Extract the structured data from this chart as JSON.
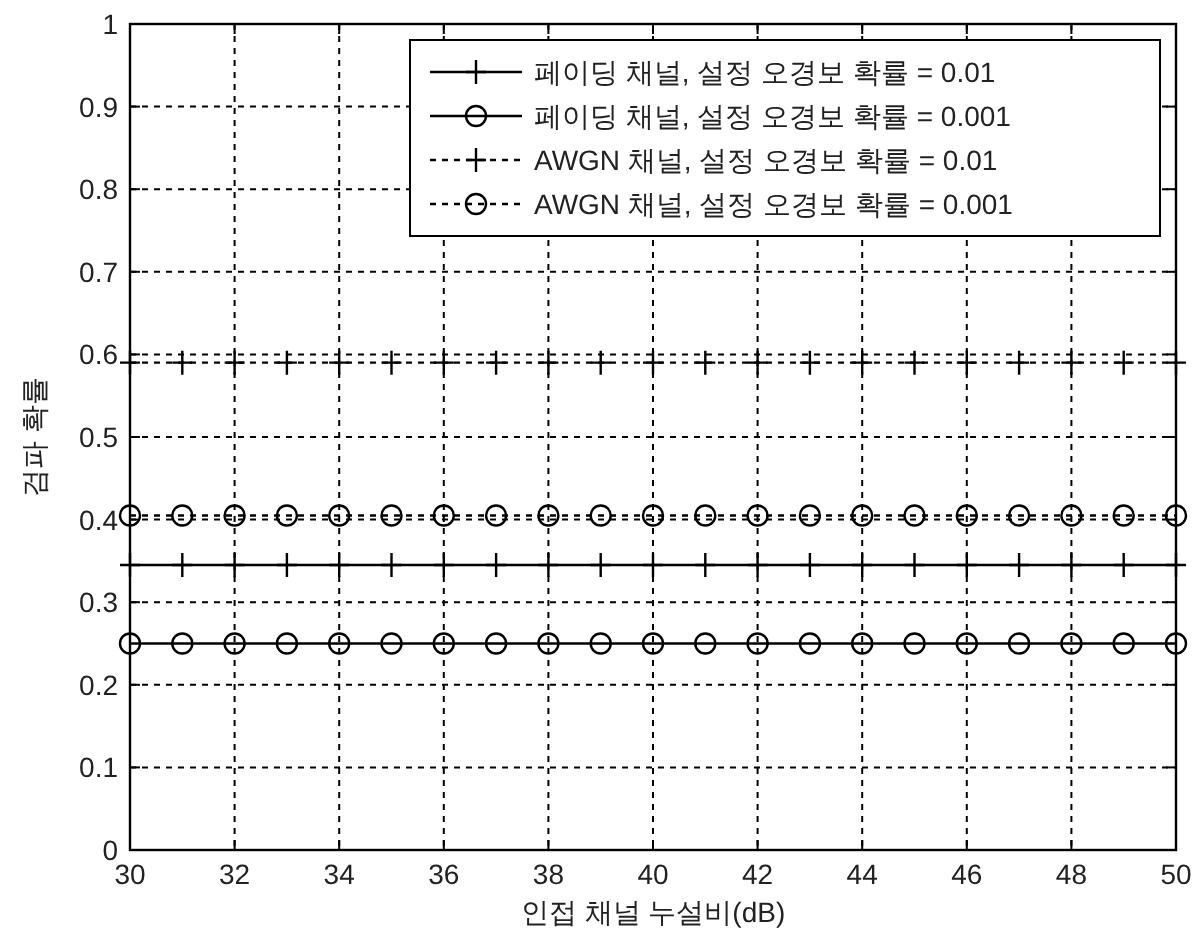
{
  "chart_data": {
    "type": "line",
    "xlabel": "인접 채널 누설비(dB)",
    "ylabel": "검파 확률",
    "x": [
      30,
      31,
      32,
      33,
      34,
      35,
      36,
      37,
      38,
      39,
      40,
      41,
      42,
      43,
      44,
      45,
      46,
      47,
      48,
      49,
      50
    ],
    "series": [
      {
        "name": "페이딩 채널, 설정 오경보 확률 = 0.01",
        "color": "#000000",
        "marker": "cross",
        "line_style": "solid",
        "values": [
          0.345,
          0.345,
          0.345,
          0.345,
          0.345,
          0.345,
          0.345,
          0.345,
          0.345,
          0.345,
          0.345,
          0.345,
          0.345,
          0.345,
          0.345,
          0.345,
          0.345,
          0.345,
          0.345,
          0.345,
          0.345
        ]
      },
      {
        "name": "페이딩 채널, 설정 오경보 확률 = 0.001",
        "color": "#000000",
        "marker": "circle",
        "line_style": "solid",
        "values": [
          0.25,
          0.25,
          0.25,
          0.25,
          0.25,
          0.25,
          0.25,
          0.25,
          0.25,
          0.25,
          0.25,
          0.25,
          0.25,
          0.25,
          0.25,
          0.25,
          0.25,
          0.25,
          0.25,
          0.25,
          0.25
        ]
      },
      {
        "name": "AWGN 채널, 설정 오경보 확률 = 0.01",
        "color": "#000000",
        "marker": "cross",
        "line_style": "dotted",
        "values": [
          0.59,
          0.59,
          0.59,
          0.59,
          0.59,
          0.59,
          0.59,
          0.59,
          0.59,
          0.59,
          0.59,
          0.59,
          0.59,
          0.59,
          0.59,
          0.59,
          0.59,
          0.59,
          0.59,
          0.59,
          0.59
        ]
      },
      {
        "name": "AWGN 채널, 설정 오경보 확률 = 0.001",
        "color": "#000000",
        "marker": "circle",
        "line_style": "dotted",
        "values": [
          0.405,
          0.405,
          0.405,
          0.405,
          0.405,
          0.405,
          0.405,
          0.405,
          0.405,
          0.405,
          0.405,
          0.405,
          0.405,
          0.405,
          0.405,
          0.405,
          0.405,
          0.405,
          0.405,
          0.405,
          0.405
        ]
      }
    ],
    "xlim": [
      30,
      50
    ],
    "ylim": [
      0,
      1
    ],
    "xticks": [
      30,
      32,
      34,
      36,
      38,
      40,
      42,
      44,
      46,
      48,
      50
    ],
    "yticks": [
      0,
      0.1,
      0.2,
      0.3,
      0.4,
      0.5,
      0.6,
      0.7,
      0.8,
      0.9,
      1
    ],
    "grid": true,
    "legend": "top right"
  }
}
